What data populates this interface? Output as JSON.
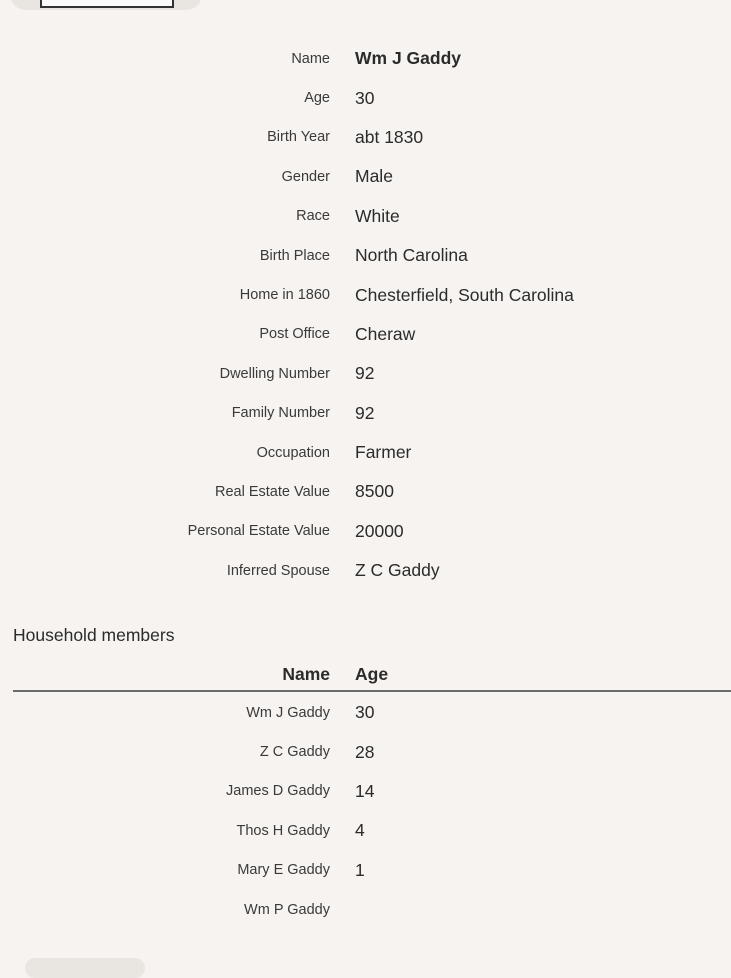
{
  "record": {
    "fields": [
      {
        "label": "Name",
        "value": "Wm J Gaddy"
      },
      {
        "label": "Age",
        "value": "30"
      },
      {
        "label": "Birth Year",
        "value": "abt 1830"
      },
      {
        "label": "Gender",
        "value": "Male"
      },
      {
        "label": "Race",
        "value": "White"
      },
      {
        "label": "Birth Place",
        "value": "North Carolina"
      },
      {
        "label": "Home in 1860",
        "value": "Chesterfield, South Carolina"
      },
      {
        "label": "Post Office",
        "value": "Cheraw"
      },
      {
        "label": "Dwelling Number",
        "value": "92"
      },
      {
        "label": "Family Number",
        "value": "92"
      },
      {
        "label": "Occupation",
        "value": "Farmer"
      },
      {
        "label": "Real Estate Value",
        "value": "8500"
      },
      {
        "label": "Personal Estate Value",
        "value": "20000"
      },
      {
        "label": "Inferred Spouse",
        "value": "Z C Gaddy"
      }
    ]
  },
  "household": {
    "title": "Household members",
    "columns": [
      "Name",
      "Age"
    ],
    "members": [
      {
        "name": "Wm J Gaddy",
        "age": "30"
      },
      {
        "name": "Z C Gaddy",
        "age": "28"
      },
      {
        "name": "James D Gaddy",
        "age": "14"
      },
      {
        "name": "Thos H Gaddy",
        "age": "4"
      },
      {
        "name": "Mary E Gaddy",
        "age": "1"
      },
      {
        "name": "Wm P Gaddy",
        "age": ""
      }
    ]
  }
}
